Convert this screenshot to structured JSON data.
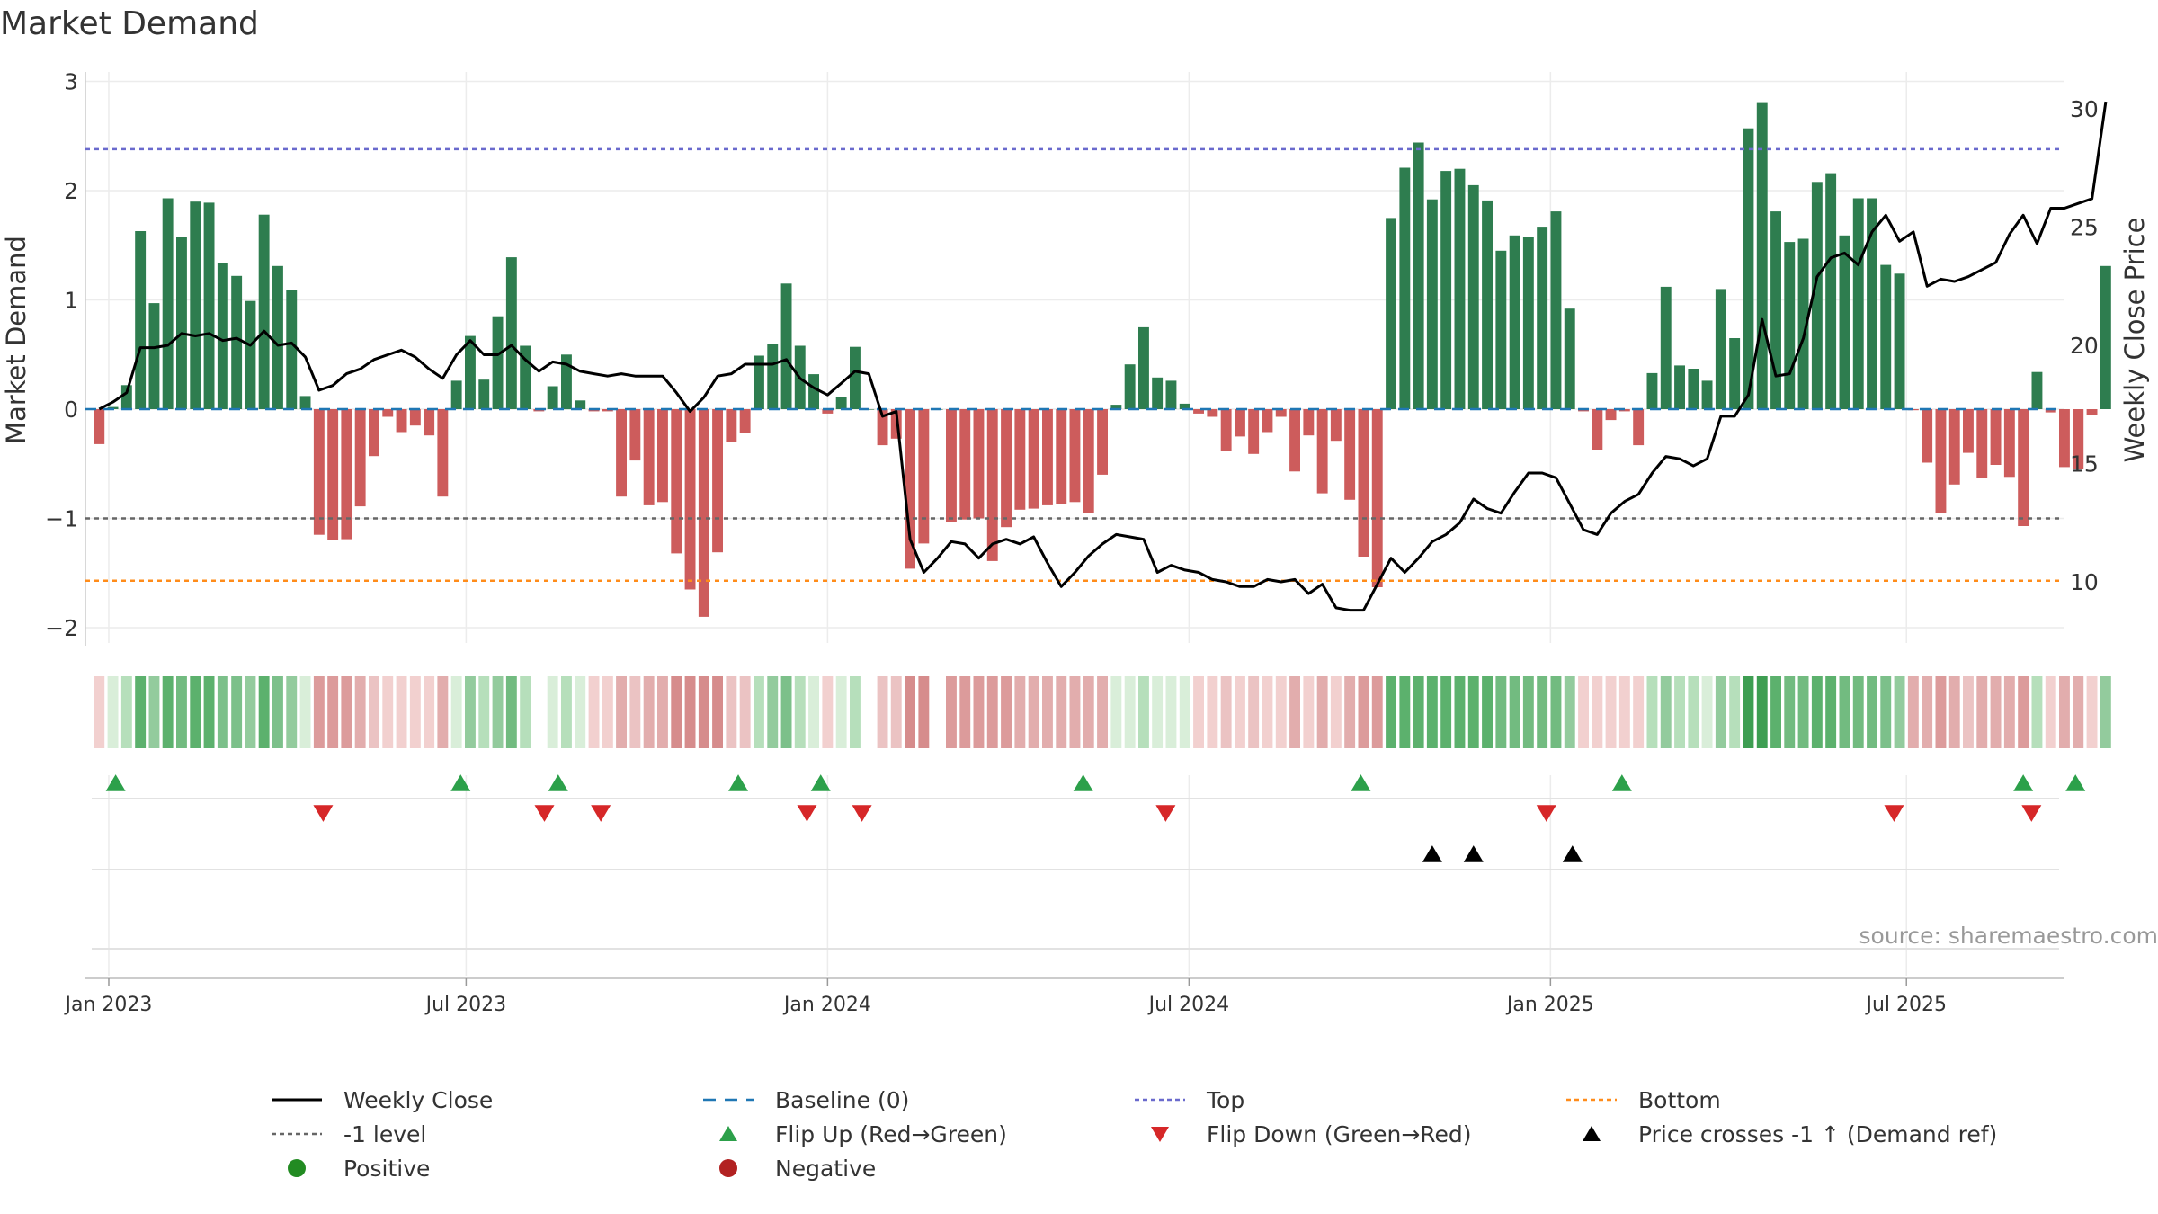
{
  "chart_data": {
    "type": "bar",
    "title": "Market Demand",
    "ylabel": "Market Demand",
    "y2label": "Weekly Close Price",
    "ylim": [
      -2.2,
      3.0
    ],
    "y2lim": [
      7.5,
      31.3
    ],
    "yticks": [
      -2,
      -1,
      0,
      1,
      2,
      3
    ],
    "ytick_labels": [
      "−2",
      "−1",
      "0",
      "1",
      "2",
      "3"
    ],
    "y2ticks": [
      10,
      15,
      20,
      25,
      30
    ],
    "y2tick_labels": [
      "10",
      "15",
      "20",
      "25",
      "30"
    ],
    "xlim_weeks": [
      -1.0,
      143.0
    ],
    "xticks_weeks": [
      0.7,
      26.7,
      53.0,
      79.3,
      105.6,
      131.5
    ],
    "xtick_labels": [
      "Jan 2023",
      "Jul 2023",
      "Jan 2024",
      "Jul 2024",
      "Jan 2025",
      "Jul 2025"
    ],
    "source_text": "source: sharemaestro.com",
    "reference_lines": {
      "baseline": {
        "y": 0,
        "color": "#1f77b4",
        "label": "Baseline (0)"
      },
      "top": {
        "y": 2.38,
        "color": "#6a6acd",
        "label": "Top"
      },
      "minus_one": {
        "y": -1.0,
        "color": "#666666",
        "label": "-1 level"
      },
      "bottom": {
        "y": -1.57,
        "color": "#ff8c1a",
        "label": "Bottom"
      }
    },
    "colors": {
      "positive_bar": "#2e7d4f",
      "negative_bar": "#cd5c5c",
      "flip_up": "#2ca04a",
      "flip_down": "#d62728",
      "price_cross": "#000000",
      "price_line": "#000000",
      "positive_dot": "#228b22",
      "negative_dot": "#b22222"
    },
    "series": [
      {
        "name": "Market Demand",
        "values": [
          -0.32,
          0.02,
          0.22,
          1.63,
          0.97,
          1.93,
          1.58,
          1.9,
          1.89,
          1.34,
          1.22,
          0.99,
          1.78,
          1.31,
          1.09,
          0.12,
          -1.15,
          -1.2,
          -1.19,
          -0.89,
          -0.43,
          -0.07,
          -0.21,
          -0.15,
          -0.24,
          -0.8,
          0.26,
          0.67,
          0.27,
          0.85,
          1.39,
          0.58,
          -0.02,
          0.21,
          0.5,
          0.08,
          -0.02,
          -0.02,
          -0.8,
          -0.47,
          -0.88,
          -0.85,
          -1.32,
          -1.65,
          -1.9,
          -1.31,
          -0.3,
          -0.22,
          0.49,
          0.6,
          1.15,
          0.58,
          0.32,
          -0.04,
          0.11,
          0.57,
          0.0,
          -0.33,
          -0.27,
          -1.46,
          -1.23,
          0.0,
          -1.03,
          -1.01,
          -1.0,
          -1.39,
          -1.08,
          -0.92,
          -0.91,
          -0.88,
          -0.87,
          -0.85,
          -0.95,
          -0.6,
          0.04,
          0.41,
          0.75,
          0.29,
          0.26,
          0.05,
          -0.04,
          -0.07,
          -0.38,
          -0.25,
          -0.41,
          -0.21,
          -0.07,
          -0.57,
          -0.24,
          -0.77,
          -0.29,
          -0.83,
          -1.35,
          -1.63,
          1.75,
          2.21,
          2.44,
          1.92,
          2.18,
          2.2,
          2.05,
          1.91,
          1.45,
          1.59,
          1.58,
          1.67,
          1.81,
          0.92,
          -0.02,
          -0.37,
          -0.1,
          -0.02,
          -0.33,
          0.33,
          1.12,
          0.4,
          0.37,
          0.26,
          1.1,
          0.65,
          2.57,
          2.81,
          1.81,
          1.53,
          1.56,
          2.08,
          2.16,
          1.59,
          1.93,
          1.93,
          1.32,
          1.24,
          -0.01,
          -0.49,
          -0.95,
          -0.69,
          -0.4,
          -0.63,
          -0.51,
          -0.62,
          -1.07,
          0.34,
          -0.03,
          -0.53,
          -0.55,
          -0.05,
          1.31
        ]
      },
      {
        "name": "Weekly Close",
        "values": [
          17.3,
          17.6,
          18.0,
          19.9,
          19.9,
          20.0,
          20.5,
          20.4,
          20.5,
          20.2,
          20.3,
          20.0,
          20.6,
          20.0,
          20.1,
          19.5,
          18.1,
          18.3,
          18.8,
          19.0,
          19.4,
          19.6,
          19.8,
          19.5,
          19.0,
          18.6,
          19.6,
          20.2,
          19.6,
          19.6,
          20.0,
          19.4,
          18.9,
          19.3,
          19.2,
          18.9,
          18.8,
          18.7,
          18.8,
          18.7,
          18.7,
          18.7,
          18.0,
          17.2,
          17.8,
          18.7,
          18.8,
          19.2,
          19.2,
          19.2,
          19.4,
          18.6,
          18.2,
          17.9,
          18.4,
          18.9,
          18.8,
          17.0,
          17.2,
          11.8,
          10.4,
          11.0,
          11.7,
          11.6,
          11.0,
          11.6,
          11.8,
          11.6,
          11.9,
          10.8,
          9.8,
          10.4,
          11.1,
          11.6,
          12.0,
          11.9,
          11.8,
          10.4,
          10.7,
          10.5,
          10.4,
          10.1,
          10.0,
          9.8,
          9.8,
          10.1,
          10.0,
          10.1,
          9.5,
          9.9,
          8.9,
          8.8,
          8.8,
          9.9,
          11.0,
          10.4,
          11.0,
          11.7,
          12.0,
          12.5,
          13.5,
          13.1,
          12.9,
          13.8,
          14.6,
          14.6,
          14.4,
          13.3,
          12.2,
          12.0,
          12.9,
          13.4,
          13.7,
          14.6,
          15.3,
          15.2,
          14.9,
          15.2,
          17.0,
          17.0,
          17.9,
          21.1,
          18.7,
          18.8,
          20.3,
          22.9,
          23.7,
          23.9,
          23.4,
          24.8,
          25.5,
          24.4,
          24.8,
          22.5,
          22.8,
          22.7,
          22.9,
          23.2,
          23.5,
          24.7,
          25.5,
          24.3,
          25.8,
          25.8,
          26.0,
          26.2,
          30.3
        ]
      }
    ],
    "demand_strip_colors": [
      "#f2d0cf",
      "#d9eed9",
      "#b6dfbb",
      "#5cb16d",
      "#93cb9d",
      "#5cb16d",
      "#72bb80",
      "#5cb16d",
      "#5cb16d",
      "#7cc08a",
      "#7cc08a",
      "#93cb9d",
      "#5cb16d",
      "#7cc08a",
      "#93cb9d",
      "#d9eed9",
      "#dc9b9b",
      "#dc9b9b",
      "#dc9b9b",
      "#e2adad",
      "#ebc3c3",
      "#f2d0cf",
      "#f2d0cf",
      "#f2d0cf",
      "#f2d0cf",
      "#e2adad",
      "#d9eed9",
      "#93cb9d",
      "#b6dfbb",
      "#93cb9d",
      "#72bb80",
      "#b6dfbb",
      "#ffffff",
      "#d9eed9",
      "#b6dfbb",
      "#d9eed9",
      "#f2d0cf",
      "#f2d0cf",
      "#e2adad",
      "#ebc3c3",
      "#e2adad",
      "#e2adad",
      "#d68c8c",
      "#d68c8c",
      "#d68c8c",
      "#d68c8c",
      "#ebc3c3",
      "#ebc3c3",
      "#b6dfbb",
      "#93cb9d",
      "#7cc08a",
      "#b6dfbb",
      "#d9eed9",
      "#f2d0cf",
      "#d9eed9",
      "#b6dfbb",
      "#ffffff",
      "#ebc3c3",
      "#ebc3c3",
      "#d68c8c",
      "#d68c8c",
      "#ffffff",
      "#dc9b9b",
      "#dc9b9b",
      "#dc9b9b",
      "#dc9b9b",
      "#dc9b9b",
      "#e2adad",
      "#e2adad",
      "#e2adad",
      "#e2adad",
      "#e2adad",
      "#e2adad",
      "#e2adad",
      "#d9eed9",
      "#d9eed9",
      "#b6dfbb",
      "#d9eed9",
      "#d9eed9",
      "#d9eed9",
      "#f2d0cf",
      "#f2d0cf",
      "#ebc3c3",
      "#f2d0cf",
      "#ebc3c3",
      "#f2d0cf",
      "#f2d0cf",
      "#e2adad",
      "#f2d0cf",
      "#e2adad",
      "#f2d0cf",
      "#e2adad",
      "#dc9b9b",
      "#dc9b9b",
      "#5cb16d",
      "#5cb16d",
      "#5cb16d",
      "#5cb16d",
      "#5cb16d",
      "#5cb16d",
      "#5cb16d",
      "#5cb16d",
      "#72bb80",
      "#72bb80",
      "#72bb80",
      "#72bb80",
      "#72bb80",
      "#93cb9d",
      "#f2d0cf",
      "#f2d0cf",
      "#f2d0cf",
      "#f2d0cf",
      "#f2d0cf",
      "#b6dfbb",
      "#93cb9d",
      "#b6dfbb",
      "#b6dfbb",
      "#d9eed9",
      "#93cb9d",
      "#b6dfbb",
      "#3e9e52",
      "#3e9e52",
      "#5cb16d",
      "#72bb80",
      "#72bb80",
      "#5cb16d",
      "#5cb16d",
      "#72bb80",
      "#72bb80",
      "#72bb80",
      "#7cc08a",
      "#93cb9d",
      "#e2adad",
      "#e2adad",
      "#dc9b9b",
      "#e2adad",
      "#ebc3c3",
      "#e2adad",
      "#e2adad",
      "#e2adad",
      "#dc9b9b",
      "#b6dfbb",
      "#f2d0cf",
      "#e2adad",
      "#e2adad",
      "#f2d0cf",
      "#93cb9d"
    ],
    "flip_up_weeks": [
      1.2,
      26.3,
      33.4,
      46.5,
      52.5,
      71.6,
      91.8,
      110.8,
      140.0,
      143.8
    ],
    "flip_down_weeks": [
      16.3,
      32.4,
      36.5,
      51.5,
      55.5,
      77.6,
      105.3,
      130.6,
      140.6
    ],
    "price_cross_weeks": [
      97.0,
      100.0,
      107.2
    ],
    "legend": [
      {
        "label": "Weekly Close",
        "symbol": "solid-line"
      },
      {
        "label": "Baseline (0)",
        "symbol": "dash-line"
      },
      {
        "label": "Top",
        "symbol": "dot-line-purple"
      },
      {
        "label": "Bottom",
        "symbol": "dot-line-orange"
      },
      {
        "label": "-1 level",
        "symbol": "dot-line-gray"
      },
      {
        "label": "Flip Up (Red→Green)",
        "symbol": "triangle-up-green"
      },
      {
        "label": "Flip Down (Green→Red)",
        "symbol": "triangle-down-red"
      },
      {
        "label": "Price crosses -1 ↑ (Demand ref)",
        "symbol": "triangle-up-black"
      },
      {
        "label": "Positive",
        "symbol": "dot-green"
      },
      {
        "label": "Negative",
        "symbol": "dot-red"
      }
    ]
  }
}
